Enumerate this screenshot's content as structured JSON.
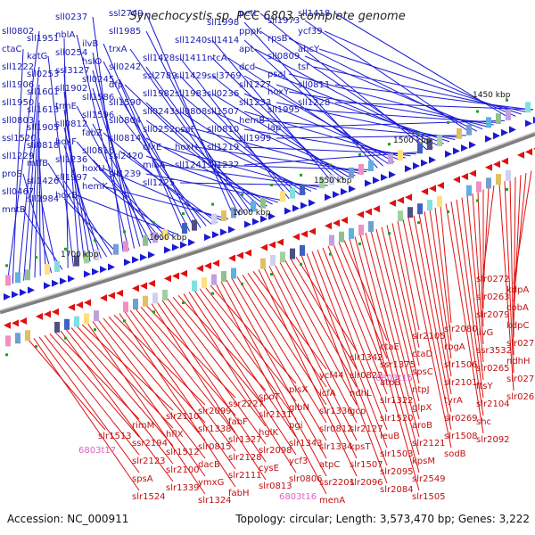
{
  "title": "Synechocystis sp. PCC 6803, complete genome",
  "footer": {
    "accession": "Accession: NC_000911",
    "summary": "Topology: circular; Length: 3,573,470 bp; Genes: 3,222"
  },
  "colors": {
    "plus_strand": "#1a1ad6",
    "minus_strand": "#e01010",
    "rna_gene": "#e060c0",
    "backbone": "#808080",
    "tick_marker": "#20a020"
  },
  "scale_labels": [
    "1450 kbp",
    "1500 kbp",
    "1550 kbp",
    "1600 kbp",
    "1650 kbp",
    "1700 kbp"
  ],
  "plus_labels": [
    "sll0802",
    "ctaC",
    "sll1222",
    "sll1906",
    "sll1950",
    "sll0803",
    "ssl1520",
    "sll1229",
    "proS",
    "sll0467",
    "mntB",
    "sll1951",
    "katG",
    "sll0253",
    "sll1601",
    "sll1613",
    "sll1905",
    "sll0818",
    "mtfB",
    "sll1426",
    "sll1984",
    "sll0237",
    "nblA",
    "sll0254",
    "ssl3127",
    "sll1902",
    "trmE",
    "sll0812",
    "hoxF",
    "sll1236",
    "sll1997",
    "hoxB",
    "ilvB",
    "hslO",
    "sll0245",
    "sll1586",
    "sll1596",
    "fabZ",
    "sll0816",
    "hoxU",
    "hemK",
    "ssl2749",
    "sll1985",
    "trxA",
    "sll0242",
    "dfp",
    "sll1590",
    "sll0804",
    "sll0814",
    "ssl2420",
    "sll1239",
    "sll1428",
    "ssl2789",
    "sll1982",
    "sll0243",
    "sll0252",
    "cfxE",
    "miaA",
    "sll1225",
    "sll1240",
    "sll1411",
    "sll1429",
    "sll1983",
    "sll0808",
    "psaF",
    "hoxH",
    "sll1241",
    "sll1998",
    "sll1414",
    "ntcA",
    "ssl3769",
    "sll0236",
    "sll1507",
    "sll0810",
    "sll1219",
    "sll1232",
    "petL",
    "pppK",
    "apt",
    "dcd",
    "sll1227",
    "sll1233",
    "hemB",
    "sll1999",
    "sll1973",
    "rpsB",
    "sll0809",
    "psaJ",
    "hoxY",
    "sll1995",
    "lap",
    "sll1418",
    "ycf39",
    "ahcY",
    "tsf",
    "sll0811",
    "sll1228"
  ],
  "minus_labels": [
    "kdpA",
    "cobA",
    "kdpC",
    "slr0273",
    "ndhH",
    "slr0271",
    "slr0262",
    "slr0272",
    "slr0263",
    "slr2079",
    "ilvG",
    "ssr3532",
    "slr0265",
    "ftsY",
    "slr2104",
    "shc",
    "slr2092",
    "slr2080",
    "rbgA",
    "slr1506",
    "slr2101",
    "tyrA",
    "slr0269",
    "slr1508",
    "sodB",
    "slr2105",
    "ctaD",
    "spsC",
    "ntpJ",
    "glpX",
    "aroB",
    "slr2121",
    "kpsM",
    "slr2549",
    "slr1505",
    "ctaE",
    "ssr1375",
    "atpB",
    "slr1322",
    "slr1520",
    "leuB",
    "slr1503",
    "slr2095",
    "slr2084",
    "slr1342",
    "slr0822",
    "ndhL",
    "gcp",
    "slr2127",
    "kpsT",
    "slr1507",
    "slr2096",
    "ycf44",
    "icfA",
    "slr1336",
    "slr0812",
    "slr1334",
    "atpC",
    "ssr2201",
    "menA",
    "plsX",
    "glbN",
    "pgi",
    "slr1343",
    "ycf3",
    "slr0806",
    "spoT",
    "slr2131",
    "hglK",
    "slr2098",
    "cysE",
    "slr0813",
    "ssr2227",
    "fabF",
    "slr1327",
    "slr2128",
    "slr2111",
    "fabH",
    "slr2099",
    "slr1338",
    "slr0815",
    "dacB",
    "ymxG",
    "slr1324",
    "slr2110",
    "hflX",
    "slr1512",
    "slr2100",
    "slr1339",
    "rimM",
    "ssr2194",
    "slr2123",
    "spsA",
    "slr1524",
    "slr1513"
  ],
  "rna_labels": [
    "6803t15",
    "6803t17",
    "6803t16"
  ]
}
